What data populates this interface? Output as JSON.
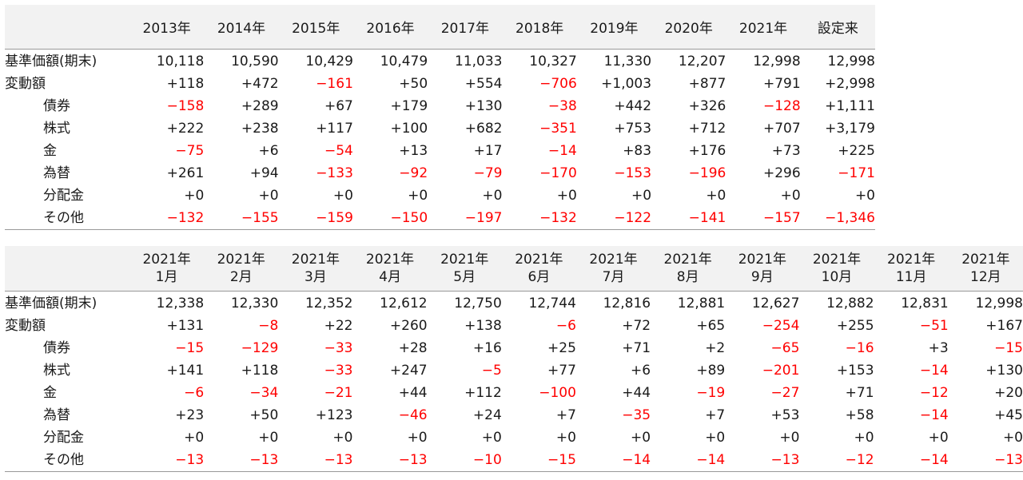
{
  "annual": {
    "columns": [
      "2013年",
      "2014年",
      "2015年",
      "2016年",
      "2017年",
      "2018年",
      "2019年",
      "2020年",
      "2021年",
      "設定来"
    ],
    "rows": [
      {
        "label": "基準価額(期末)",
        "indent": false,
        "values": [
          "10,118",
          "10,590",
          "10,429",
          "10,479",
          "11,033",
          "10,327",
          "11,330",
          "12,207",
          "12,998",
          "12,998"
        ]
      },
      {
        "label": "変動額",
        "indent": false,
        "values": [
          "+118",
          "+472",
          "−161",
          "+50",
          "+554",
          "−706",
          "+1,003",
          "+877",
          "+791",
          "+2,998"
        ]
      },
      {
        "label": "債券",
        "indent": true,
        "values": [
          "−158",
          "+289",
          "+67",
          "+179",
          "+130",
          "−38",
          "+442",
          "+326",
          "−128",
          "+1,111"
        ]
      },
      {
        "label": "株式",
        "indent": true,
        "values": [
          "+222",
          "+238",
          "+117",
          "+100",
          "+682",
          "−351",
          "+753",
          "+712",
          "+707",
          "+3,179"
        ]
      },
      {
        "label": "金",
        "indent": true,
        "values": [
          "−75",
          "+6",
          "−54",
          "+13",
          "+17",
          "−14",
          "+83",
          "+176",
          "+73",
          "+225"
        ]
      },
      {
        "label": "為替",
        "indent": true,
        "values": [
          "+261",
          "+94",
          "−133",
          "−92",
          "−79",
          "−170",
          "−153",
          "−196",
          "+296",
          "−171"
        ]
      },
      {
        "label": "分配金",
        "indent": true,
        "values": [
          "+0",
          "+0",
          "+0",
          "+0",
          "+0",
          "+0",
          "+0",
          "+0",
          "+0",
          "+0"
        ]
      },
      {
        "label": "その他",
        "indent": true,
        "values": [
          "−132",
          "−155",
          "−159",
          "−150",
          "−197",
          "−132",
          "−122",
          "−141",
          "−157",
          "−1,346"
        ]
      }
    ]
  },
  "monthly": {
    "columns": [
      {
        "year": "2021年",
        "month": "1月"
      },
      {
        "year": "2021年",
        "month": "2月"
      },
      {
        "year": "2021年",
        "month": "3月"
      },
      {
        "year": "2021年",
        "month": "4月"
      },
      {
        "year": "2021年",
        "month": "5月"
      },
      {
        "year": "2021年",
        "month": "6月"
      },
      {
        "year": "2021年",
        "month": "7月"
      },
      {
        "year": "2021年",
        "month": "8月"
      },
      {
        "year": "2021年",
        "month": "9月"
      },
      {
        "year": "2021年",
        "month": "10月"
      },
      {
        "year": "2021年",
        "month": "11月"
      },
      {
        "year": "2021年",
        "month": "12月"
      }
    ],
    "rows": [
      {
        "label": "基準価額(期末)",
        "indent": false,
        "values": [
          "12,338",
          "12,330",
          "12,352",
          "12,612",
          "12,750",
          "12,744",
          "12,816",
          "12,881",
          "12,627",
          "12,882",
          "12,831",
          "12,998"
        ]
      },
      {
        "label": "変動額",
        "indent": false,
        "values": [
          "+131",
          "−8",
          "+22",
          "+260",
          "+138",
          "−6",
          "+72",
          "+65",
          "−254",
          "+255",
          "−51",
          "+167"
        ]
      },
      {
        "label": "債券",
        "indent": true,
        "values": [
          "−15",
          "−129",
          "−33",
          "+28",
          "+16",
          "+25",
          "+71",
          "+2",
          "−65",
          "−16",
          "+3",
          "−15"
        ]
      },
      {
        "label": "株式",
        "indent": true,
        "values": [
          "+141",
          "+118",
          "−33",
          "+247",
          "−5",
          "+77",
          "+6",
          "+89",
          "−201",
          "+153",
          "−14",
          "+130"
        ]
      },
      {
        "label": "金",
        "indent": true,
        "values": [
          "−6",
          "−34",
          "−21",
          "+44",
          "+112",
          "−100",
          "+44",
          "−19",
          "−27",
          "+71",
          "−12",
          "+20"
        ]
      },
      {
        "label": "為替",
        "indent": true,
        "values": [
          "+23",
          "+50",
          "+123",
          "−46",
          "+24",
          "+7",
          "−35",
          "+7",
          "+53",
          "+58",
          "−14",
          "+45"
        ]
      },
      {
        "label": "分配金",
        "indent": true,
        "values": [
          "+0",
          "+0",
          "+0",
          "+0",
          "+0",
          "+0",
          "+0",
          "+0",
          "+0",
          "+0",
          "+0",
          "+0"
        ]
      },
      {
        "label": "その他",
        "indent": true,
        "values": [
          "−13",
          "−13",
          "−13",
          "−13",
          "−10",
          "−15",
          "−14",
          "−14",
          "−13",
          "−12",
          "−14",
          "−13"
        ]
      }
    ]
  },
  "colors": {
    "negative": "#ff0000",
    "header_bg": "#f2f2f2",
    "text": "#1a1a1a"
  }
}
